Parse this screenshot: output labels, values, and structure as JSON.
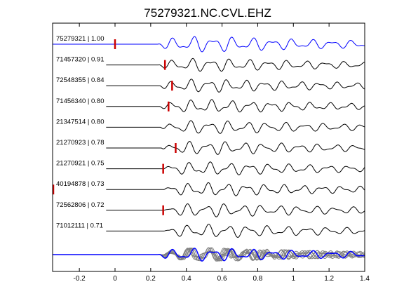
{
  "chart_data": {
    "type": "line",
    "title": "75279321.NC.CVL.EHZ",
    "xlabel": "",
    "ylabel": "",
    "xlim": [
      -0.35,
      1.4
    ],
    "grid": false,
    "x_ticks": [
      "-0.2",
      "0",
      "0.2",
      "0.4",
      "0.6",
      "0.8",
      "1",
      "1.2",
      "1.4"
    ],
    "x_tick_values": [
      -0.2,
      0,
      0.2,
      0.4,
      0.6,
      0.8,
      1.0,
      1.2,
      1.4
    ],
    "series": [
      {
        "name": "75279321 | 1.00",
        "event_id": "75279321",
        "correlation": 1.0,
        "pick_time": 0.0,
        "color": "#0000ff"
      },
      {
        "name": "71457320 | 0.91",
        "event_id": "71457320",
        "correlation": 0.91,
        "pick_time": 0.28,
        "color": "#000000"
      },
      {
        "name": "72548355 | 0.84",
        "event_id": "72548355",
        "correlation": 0.84,
        "pick_time": 0.32,
        "color": "#000000"
      },
      {
        "name": "71456340 | 0.80",
        "event_id": "71456340",
        "correlation": 0.8,
        "pick_time": 0.3,
        "color": "#000000"
      },
      {
        "name": "21347514 | 0.80",
        "event_id": "21347514",
        "correlation": 0.8,
        "pick_time": null,
        "color": "#000000"
      },
      {
        "name": "21270923 | 0.78",
        "event_id": "21270923",
        "correlation": 0.78,
        "pick_time": 0.34,
        "color": "#000000"
      },
      {
        "name": "21270921 | 0.75",
        "event_id": "21270921",
        "correlation": 0.75,
        "pick_time": 0.27,
        "color": "#000000"
      },
      {
        "name": "40194878 | 0.73",
        "event_id": "40194878",
        "correlation": 0.73,
        "pick_time": -0.35,
        "color": "#000000"
      },
      {
        "name": "72562806 | 0.72",
        "event_id": "72562806",
        "correlation": 0.72,
        "pick_time": 0.27,
        "color": "#000000"
      },
      {
        "name": "71012111 | 0.71",
        "event_id": "71012111",
        "correlation": 0.71,
        "pick_time": null,
        "color": "#000000"
      }
    ],
    "stack": {
      "overlay_color": "#808080",
      "reference_color": "#0000ff"
    },
    "pick_marker_color": "#cc0000"
  }
}
